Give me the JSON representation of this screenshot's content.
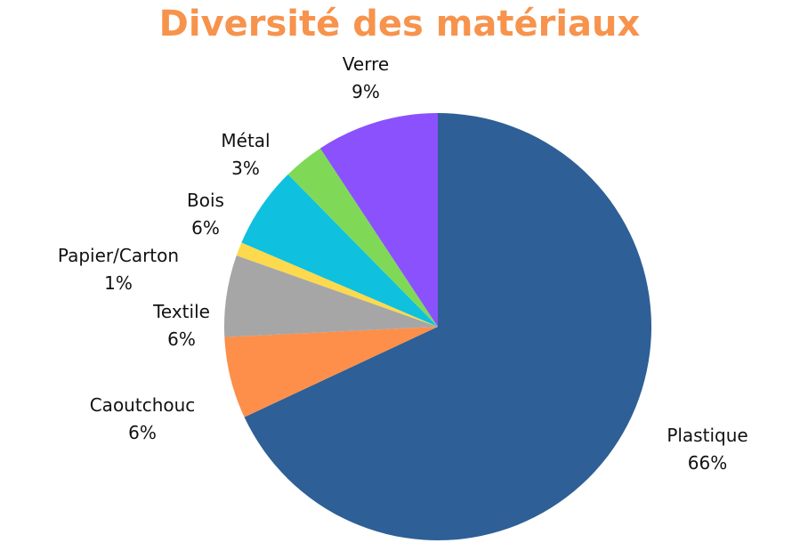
{
  "chart_data": {
    "type": "pie",
    "title": "Diversité des matériaux",
    "title_color": "#f7934c",
    "slices": [
      {
        "label": "Plastique",
        "value": 66,
        "value_label": "66%",
        "color": "#2e5f96"
      },
      {
        "label": "Caoutchouc",
        "value": 6,
        "value_label": "6%",
        "color": "#fd8f4a"
      },
      {
        "label": "Textile",
        "value": 6,
        "value_label": "6%",
        "color": "#a6a6a6"
      },
      {
        "label": "Papier/Carton",
        "value": 1,
        "value_label": "1%",
        "color": "#fdd94e"
      },
      {
        "label": "Bois",
        "value": 6,
        "value_label": "6%",
        "color": "#0fc0df"
      },
      {
        "label": "Métal",
        "value": 3,
        "value_label": "3%",
        "color": "#7fd957"
      },
      {
        "label": "Verre",
        "value": 9,
        "value_label": "9%",
        "color": "#8b51fd"
      }
    ],
    "start": "12 o'clock",
    "direction": "clockwise",
    "legend": "none"
  }
}
